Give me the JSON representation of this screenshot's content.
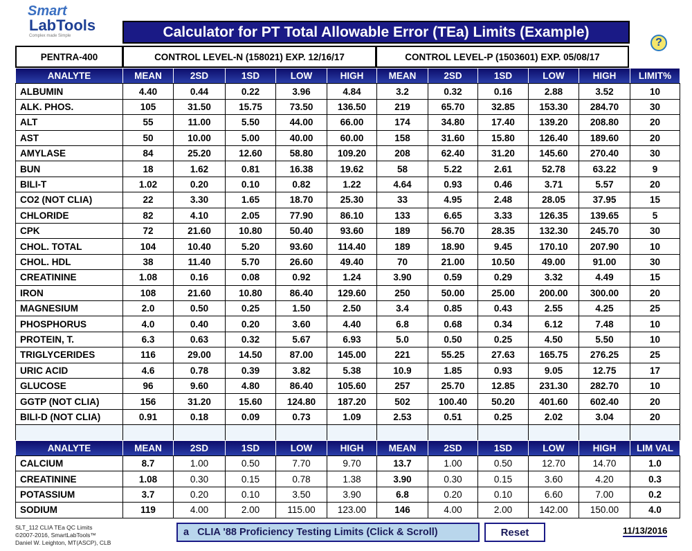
{
  "header": {
    "logo_top": "Smart",
    "logo_bottom": "LabTools",
    "logo_tagline": "Complex made Simple",
    "title": "Calculator for PT Total Allowable Error (TEa) Limits (Example)",
    "help": "?"
  },
  "controls": {
    "instrument": "PENTRA-400",
    "level_n": "CONTROL LEVEL-N (158021) EXP. 12/16/17",
    "level_p": "CONTROL LEVEL-P (1503601) EXP. 05/08/17"
  },
  "table1": {
    "columns": [
      "ANALYTE",
      "MEAN",
      "2SD",
      "1SD",
      "LOW",
      "HIGH",
      "MEAN",
      "2SD",
      "1SD",
      "LOW",
      "HIGH",
      "LIMIT%"
    ],
    "rows": [
      [
        "ALBUMIN",
        "4.40",
        "0.44",
        "0.22",
        "3.96",
        "4.84",
        "3.2",
        "0.32",
        "0.16",
        "2.88",
        "3.52",
        "10"
      ],
      [
        "ALK. PHOS.",
        "105",
        "31.50",
        "15.75",
        "73.50",
        "136.50",
        "219",
        "65.70",
        "32.85",
        "153.30",
        "284.70",
        "30"
      ],
      [
        "ALT",
        "55",
        "11.00",
        "5.50",
        "44.00",
        "66.00",
        "174",
        "34.80",
        "17.40",
        "139.20",
        "208.80",
        "20"
      ],
      [
        "AST",
        "50",
        "10.00",
        "5.00",
        "40.00",
        "60.00",
        "158",
        "31.60",
        "15.80",
        "126.40",
        "189.60",
        "20"
      ],
      [
        "AMYLASE",
        "84",
        "25.20",
        "12.60",
        "58.80",
        "109.20",
        "208",
        "62.40",
        "31.20",
        "145.60",
        "270.40",
        "30"
      ],
      [
        "BUN",
        "18",
        "1.62",
        "0.81",
        "16.38",
        "19.62",
        "58",
        "5.22",
        "2.61",
        "52.78",
        "63.22",
        "9"
      ],
      [
        "BILI-T",
        "1.02",
        "0.20",
        "0.10",
        "0.82",
        "1.22",
        "4.64",
        "0.93",
        "0.46",
        "3.71",
        "5.57",
        "20"
      ],
      [
        "CO2 (NOT CLIA)",
        "22",
        "3.30",
        "1.65",
        "18.70",
        "25.30",
        "33",
        "4.95",
        "2.48",
        "28.05",
        "37.95",
        "15"
      ],
      [
        "CHLORIDE",
        "82",
        "4.10",
        "2.05",
        "77.90",
        "86.10",
        "133",
        "6.65",
        "3.33",
        "126.35",
        "139.65",
        "5"
      ],
      [
        "CPK",
        "72",
        "21.60",
        "10.80",
        "50.40",
        "93.60",
        "189",
        "56.70",
        "28.35",
        "132.30",
        "245.70",
        "30"
      ],
      [
        "CHOL. TOTAL",
        "104",
        "10.40",
        "5.20",
        "93.60",
        "114.40",
        "189",
        "18.90",
        "9.45",
        "170.10",
        "207.90",
        "10"
      ],
      [
        "CHOL. HDL",
        "38",
        "11.40",
        "5.70",
        "26.60",
        "49.40",
        "70",
        "21.00",
        "10.50",
        "49.00",
        "91.00",
        "30"
      ],
      [
        "CREATININE",
        "1.08",
        "0.16",
        "0.08",
        "0.92",
        "1.24",
        "3.90",
        "0.59",
        "0.29",
        "3.32",
        "4.49",
        "15"
      ],
      [
        "IRON",
        "108",
        "21.60",
        "10.80",
        "86.40",
        "129.60",
        "250",
        "50.00",
        "25.00",
        "200.00",
        "300.00",
        "20"
      ],
      [
        "MAGNESIUM",
        "2.0",
        "0.50",
        "0.25",
        "1.50",
        "2.50",
        "3.4",
        "0.85",
        "0.43",
        "2.55",
        "4.25",
        "25"
      ],
      [
        "PHOSPHORUS",
        "4.0",
        "0.40",
        "0.20",
        "3.60",
        "4.40",
        "6.8",
        "0.68",
        "0.34",
        "6.12",
        "7.48",
        "10"
      ],
      [
        "PROTEIN, T.",
        "6.3",
        "0.63",
        "0.32",
        "5.67",
        "6.93",
        "5.0",
        "0.50",
        "0.25",
        "4.50",
        "5.50",
        "10"
      ],
      [
        "TRIGLYCERIDES",
        "116",
        "29.00",
        "14.50",
        "87.00",
        "145.00",
        "221",
        "55.25",
        "27.63",
        "165.75",
        "276.25",
        "25"
      ],
      [
        "URIC ACID",
        "4.6",
        "0.78",
        "0.39",
        "3.82",
        "5.38",
        "10.9",
        "1.85",
        "0.93",
        "9.05",
        "12.75",
        "17"
      ],
      [
        "GLUCOSE",
        "96",
        "9.60",
        "4.80",
        "86.40",
        "105.60",
        "257",
        "25.70",
        "12.85",
        "231.30",
        "282.70",
        "10"
      ],
      [
        "GGTP (NOT CLIA)",
        "156",
        "31.20",
        "15.60",
        "124.80",
        "187.20",
        "502",
        "100.40",
        "50.20",
        "401.60",
        "602.40",
        "20"
      ],
      [
        "BILI-D (NOT CLIA)",
        "0.91",
        "0.18",
        "0.09",
        "0.73",
        "1.09",
        "2.53",
        "0.51",
        "0.25",
        "2.02",
        "3.04",
        "20"
      ]
    ]
  },
  "table2": {
    "columns": [
      "ANALYTE",
      "MEAN",
      "2SD",
      "1SD",
      "LOW",
      "HIGH",
      "MEAN",
      "2SD",
      "1SD",
      "LOW",
      "HIGH",
      "LIM VAL"
    ],
    "rows": [
      [
        "CALCIUM",
        "8.7",
        "1.00",
        "0.50",
        "7.70",
        "9.70",
        "13.7",
        "1.00",
        "0.50",
        "12.70",
        "14.70",
        "1.0"
      ],
      [
        "CREATININE",
        "1.08",
        "0.30",
        "0.15",
        "0.78",
        "1.38",
        "3.90",
        "0.30",
        "0.15",
        "3.60",
        "4.20",
        "0.3"
      ],
      [
        "POTASSIUM",
        "3.7",
        "0.20",
        "0.10",
        "3.50",
        "3.90",
        "6.8",
        "0.20",
        "0.10",
        "6.60",
        "7.00",
        "0.2"
      ],
      [
        "SODIUM",
        "119",
        "4.00",
        "2.00",
        "115.00",
        "123.00",
        "146",
        "4.00",
        "2.00",
        "142.00",
        "150.00",
        "4.0"
      ]
    ]
  },
  "footer": {
    "lines": [
      "SLT_112 CLIA TEa QC Limits",
      "©2007-2016, SmartLabTools™",
      "Daniel W. Leighton, MT(ASCP), CLB"
    ],
    "dropdown_key": "a",
    "dropdown": "CLIA '88 Proficiency Testing Limits (Click & Scroll)",
    "reset": "Reset",
    "date": "11/13/2016"
  }
}
